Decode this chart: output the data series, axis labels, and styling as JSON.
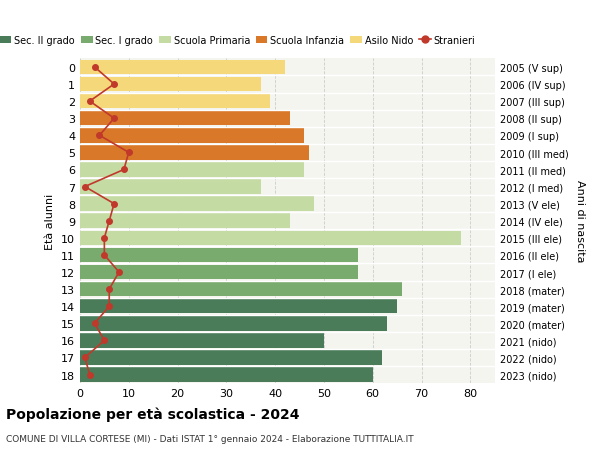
{
  "ages": [
    0,
    1,
    2,
    3,
    4,
    5,
    6,
    7,
    8,
    9,
    10,
    11,
    12,
    13,
    14,
    15,
    16,
    17,
    18
  ],
  "anni_nascita": [
    "2023 (nido)",
    "2022 (nido)",
    "2021 (nido)",
    "2020 (mater)",
    "2019 (mater)",
    "2018 (mater)",
    "2017 (I ele)",
    "2016 (II ele)",
    "2015 (III ele)",
    "2014 (IV ele)",
    "2013 (V ele)",
    "2012 (I med)",
    "2011 (II med)",
    "2010 (III med)",
    "2009 (I sup)",
    "2008 (II sup)",
    "2007 (III sup)",
    "2006 (IV sup)",
    "2005 (V sup)"
  ],
  "bar_values": [
    42,
    37,
    39,
    43,
    46,
    47,
    46,
    37,
    48,
    43,
    78,
    57,
    57,
    66,
    65,
    63,
    50,
    62,
    60
  ],
  "stranieri": [
    3,
    7,
    2,
    7,
    4,
    10,
    9,
    1,
    7,
    6,
    5,
    5,
    8,
    6,
    6,
    3,
    5,
    1,
    2
  ],
  "bar_colors": [
    "#f5d87a",
    "#f5d87a",
    "#f5d87a",
    "#d97828",
    "#d97828",
    "#d97828",
    "#c5dba4",
    "#c5dba4",
    "#c5dba4",
    "#c5dba4",
    "#c5dba4",
    "#7aab6e",
    "#7aab6e",
    "#7aab6e",
    "#4a7c59",
    "#4a7c59",
    "#4a7c59",
    "#4a7c59",
    "#4a7c59"
  ],
  "legend_labels": [
    "Sec. II grado",
    "Sec. I grado",
    "Scuola Primaria",
    "Scuola Infanzia",
    "Asilo Nido",
    "Stranieri"
  ],
  "legend_colors": [
    "#4a7c59",
    "#7aab6e",
    "#c5dba4",
    "#d97828",
    "#f5d87a",
    "#c0392b"
  ],
  "title": "Popolazione per età scolastica - 2024",
  "subtitle": "COMUNE DI VILLA CORTESE (MI) - Dati ISTAT 1° gennaio 2024 - Elaborazione TUTTITALIA.IT",
  "ylabel_left": "Età alunni",
  "ylabel_right": "Anni di nascita",
  "xlim": [
    0,
    85
  ],
  "stranieri_color": "#c0392b",
  "grid_color": "#cccccc",
  "bg_color": "#f5f5f0"
}
